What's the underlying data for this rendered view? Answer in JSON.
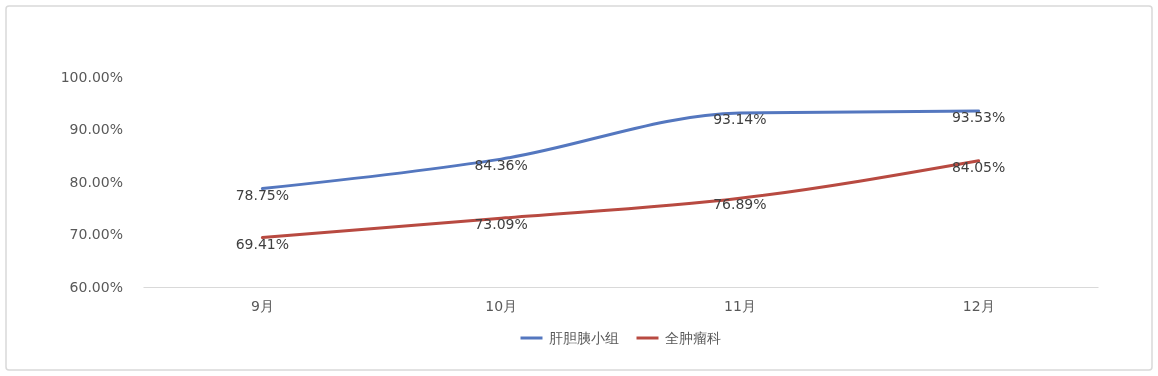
{
  "chart_data": {
    "type": "line",
    "categories": [
      "9月",
      "10月",
      "11月",
      "12月"
    ],
    "series": [
      {
        "name": "肝胆胰小组",
        "color": "#5477bf",
        "values": [
          78.75,
          84.36,
          93.14,
          93.53
        ],
        "value_labels": [
          "78.75%",
          "84.36%",
          "93.14%",
          "93.53%"
        ]
      },
      {
        "name": "全肿瘤科",
        "color": "#b84a41",
        "values": [
          69.41,
          73.09,
          76.89,
          84.05
        ],
        "value_labels": [
          "69.41%",
          "73.09%",
          "76.89%",
          "84.05%"
        ]
      }
    ],
    "ylim": [
      60,
      100
    ],
    "yticks": [
      {
        "value": 60,
        "label": "60.00%"
      },
      {
        "value": 70,
        "label": "70.00%"
      },
      {
        "value": 80,
        "label": "80.00%"
      },
      {
        "value": 90,
        "label": "90.00%"
      },
      {
        "value": 100,
        "label": "100.00%"
      }
    ],
    "legend": "bottom",
    "marker": "none",
    "line_style": "solid"
  }
}
